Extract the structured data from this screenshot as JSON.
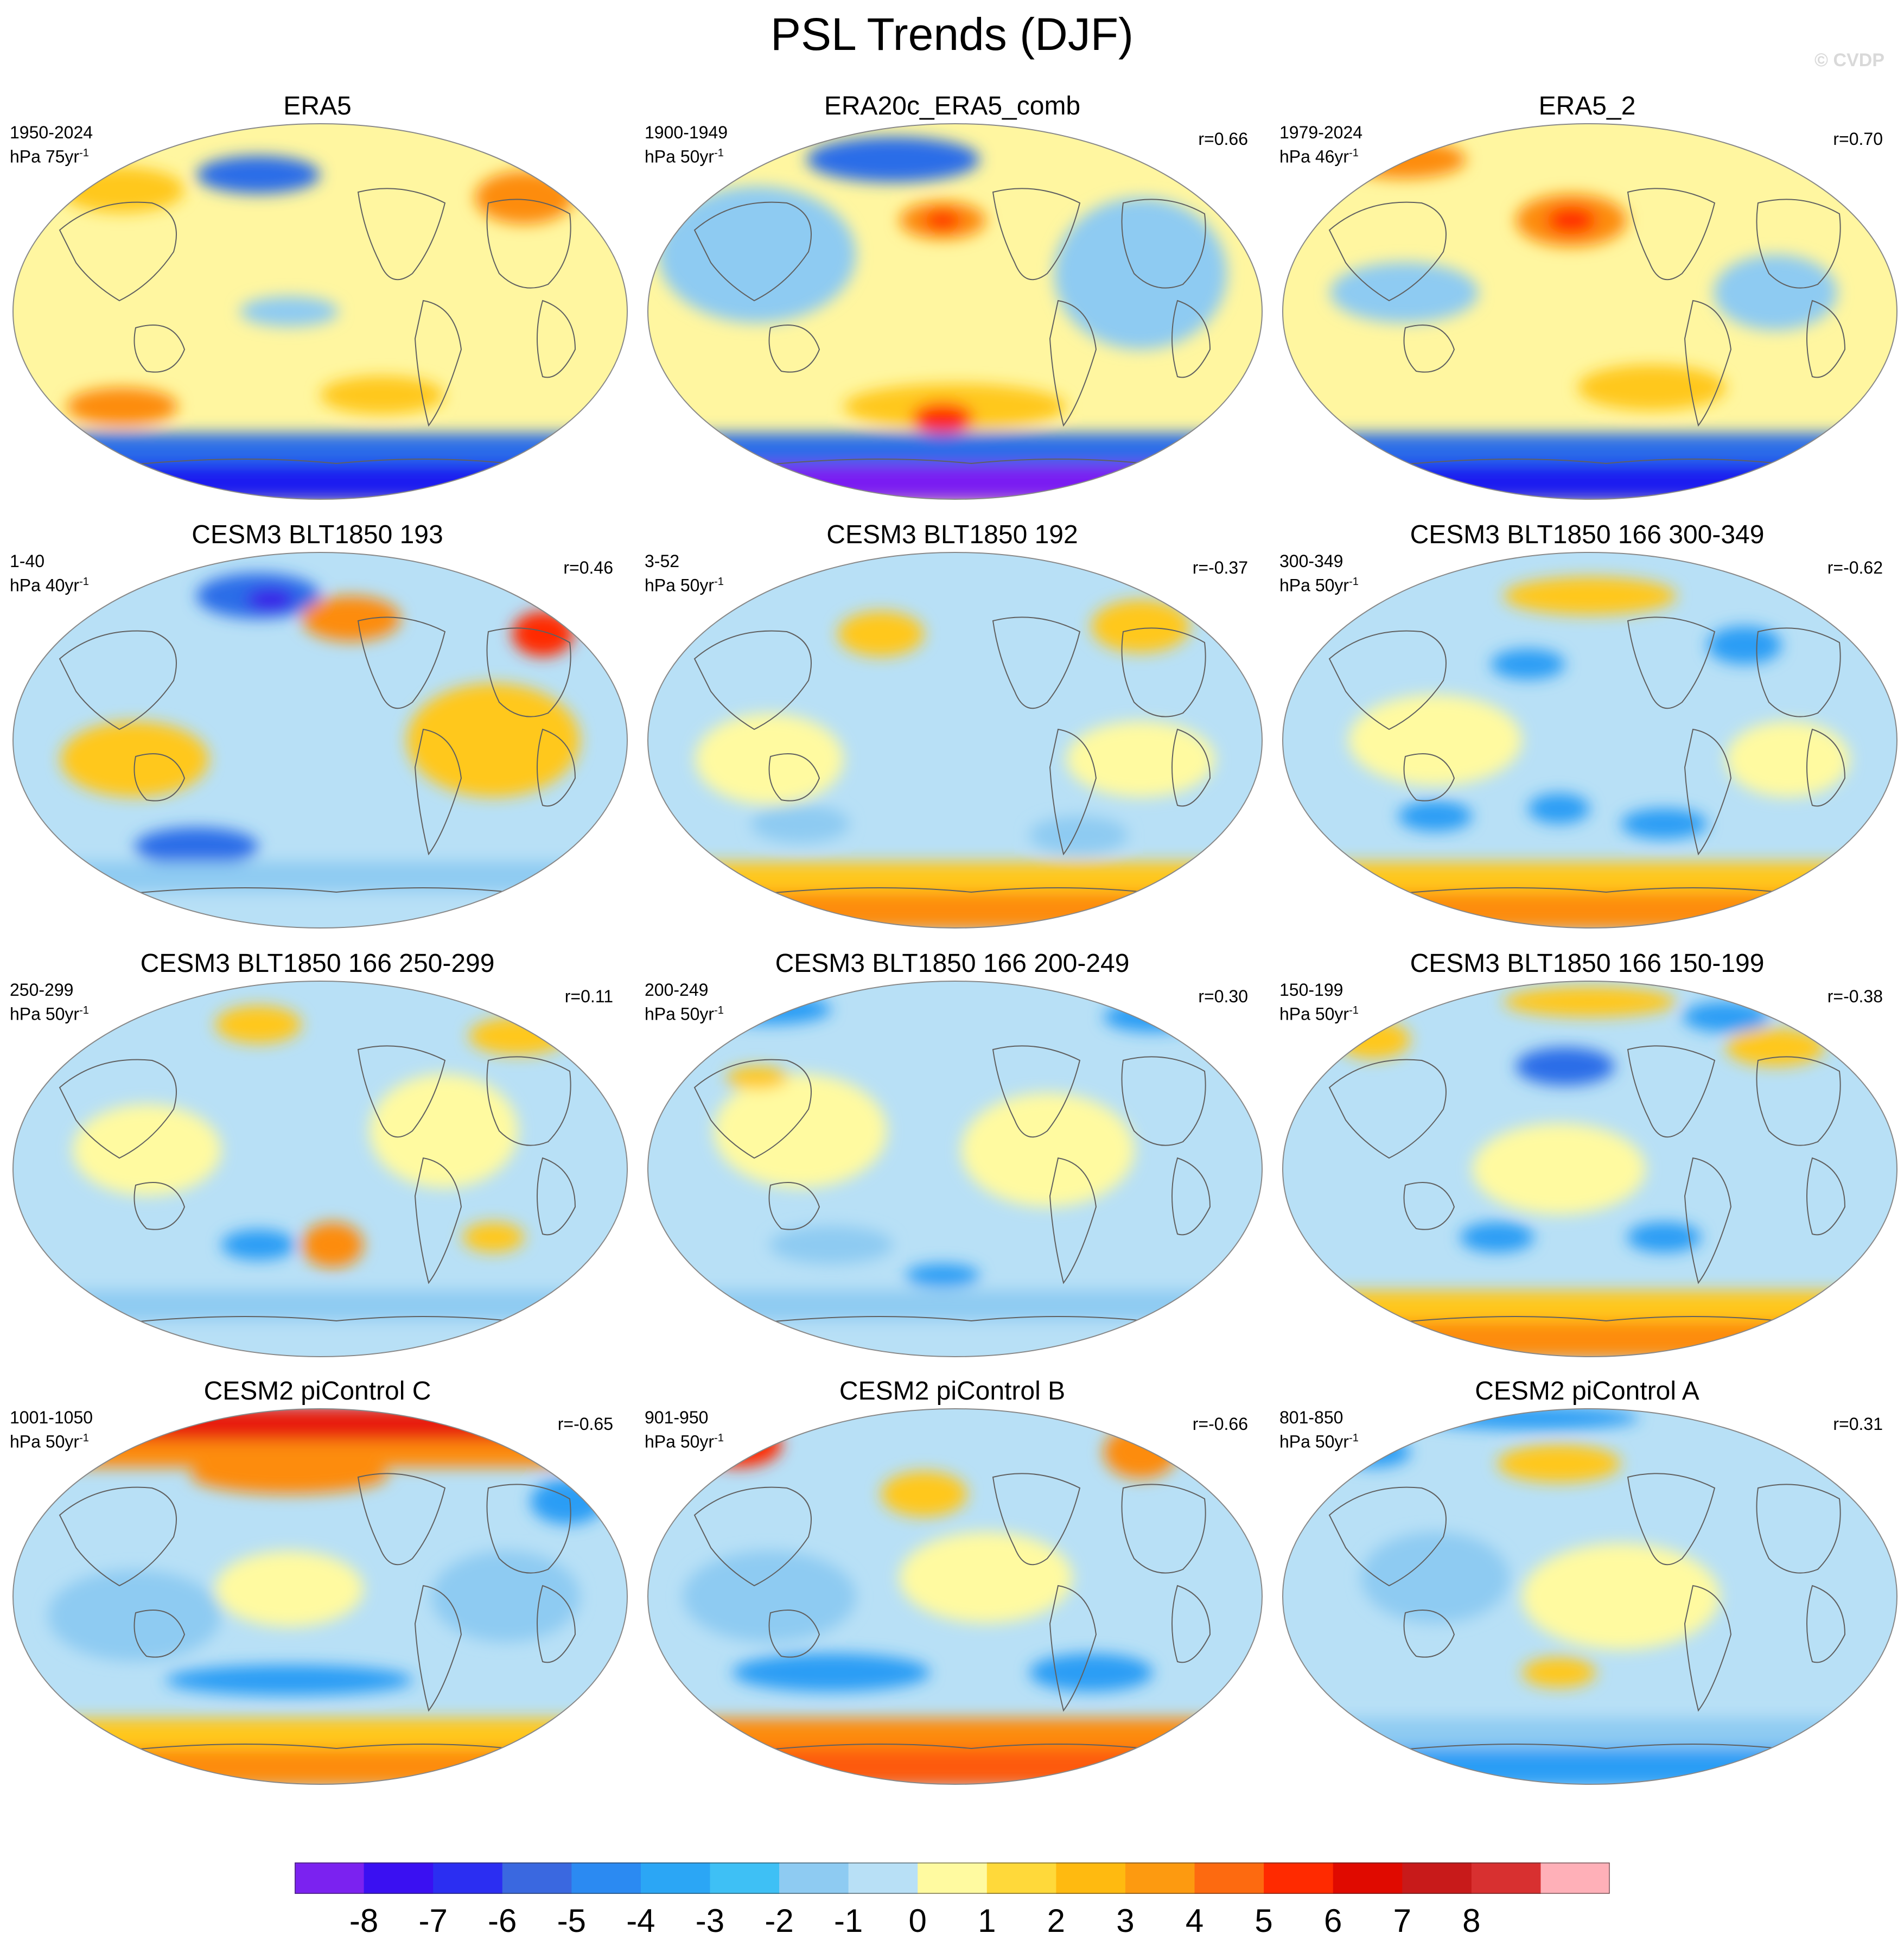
{
  "figure": {
    "title": "PSL Trends (DJF)",
    "credit": "© CVDP"
  },
  "panels": [
    {
      "title": "ERA5",
      "period": "1950-2024",
      "units": "hPa 75yr",
      "exp": "-1",
      "r": "",
      "blobs": [
        [
          "#2b6de8",
          0.4,
          0.14,
          0.1,
          0.05
        ],
        [
          "#fd8c10",
          0.83,
          0.2,
          0.08,
          0.07
        ],
        [
          "#ffc81e",
          0.18,
          0.18,
          0.1,
          0.06
        ],
        [
          "#fd8c10",
          0.18,
          0.75,
          0.09,
          0.05
        ],
        [
          "#ffc81e",
          0.6,
          0.72,
          0.1,
          0.05
        ],
        [
          "#8ecbf2",
          0.45,
          0.5,
          0.08,
          0.04
        ]
      ],
      "south": [
        "#2b6de8",
        "#1a1ff0"
      ]
    },
    {
      "title": "ERA20c_ERA5_comb",
      "period": "1900-1949",
      "units": "hPa 50yr",
      "exp": "-1",
      "r": "r=0.66",
      "blobs": [
        [
          "#8ecbf2",
          0.18,
          0.35,
          0.16,
          0.18
        ],
        [
          "#8ecbf2",
          0.8,
          0.4,
          0.14,
          0.2
        ],
        [
          "#2b6de8",
          0.4,
          0.1,
          0.14,
          0.06
        ],
        [
          "#fd8c10",
          0.48,
          0.26,
          0.07,
          0.05
        ],
        [
          "#ff2a00",
          0.48,
          0.26,
          0.03,
          0.025
        ],
        [
          "#ffc81e",
          0.5,
          0.75,
          0.18,
          0.06
        ],
        [
          "#ff2a00",
          0.48,
          0.78,
          0.05,
          0.04
        ]
      ],
      "south": [
        "#2b6de8",
        "#7a1bf2"
      ]
    },
    {
      "title": "ERA5_2",
      "period": "1979-2024",
      "units": "hPa 46yr",
      "exp": "-1",
      "r": "r=0.70",
      "blobs": [
        [
          "#fd8c10",
          0.47,
          0.26,
          0.09,
          0.07
        ],
        [
          "#ff2a00",
          0.47,
          0.26,
          0.04,
          0.035
        ],
        [
          "#fd8c10",
          0.2,
          0.1,
          0.1,
          0.05
        ],
        [
          "#8ecbf2",
          0.2,
          0.45,
          0.12,
          0.08
        ],
        [
          "#8ecbf2",
          0.8,
          0.45,
          0.1,
          0.1
        ],
        [
          "#ffc81e",
          0.6,
          0.7,
          0.12,
          0.06
        ]
      ],
      "south": [
        "#2b6de8",
        "#1a1ff0"
      ]
    },
    {
      "title": "CESM3 BLT1850 193",
      "period": "1-40",
      "units": "hPa 40yr",
      "exp": "-1",
      "r": "r=0.46",
      "blobs": [
        [
          "#2b6de8",
          0.4,
          0.12,
          0.1,
          0.06
        ],
        [
          "#3a1be8",
          0.42,
          0.13,
          0.04,
          0.03
        ],
        [
          "#fd8c10",
          0.55,
          0.18,
          0.08,
          0.06
        ],
        [
          "#ff2a00",
          0.86,
          0.22,
          0.05,
          0.06
        ],
        [
          "#ffc81e",
          0.2,
          0.55,
          0.12,
          0.1
        ],
        [
          "#ffc81e",
          0.78,
          0.5,
          0.14,
          0.15
        ],
        [
          "#2b6de8",
          0.3,
          0.78,
          0.1,
          0.05
        ]
      ],
      "south": [
        "#8ecbf2",
        "#b8e0f6"
      ]
    },
    {
      "title": "CESM3 BLT1850 192",
      "period": "3-52",
      "units": "hPa 50yr",
      "exp": "-1",
      "r": "r=-0.37",
      "blobs": [
        [
          "#ffc81e",
          0.38,
          0.22,
          0.07,
          0.06
        ],
        [
          "#ffc81e",
          0.8,
          0.2,
          0.08,
          0.07
        ],
        [
          "#fffaa0",
          0.2,
          0.55,
          0.12,
          0.12
        ],
        [
          "#fffaa0",
          0.8,
          0.55,
          0.12,
          0.1
        ],
        [
          "#8ecbf2",
          0.25,
          0.72,
          0.08,
          0.05
        ],
        [
          "#8ecbf2",
          0.7,
          0.75,
          0.08,
          0.05
        ]
      ],
      "south": [
        "#ffc81e",
        "#fd8c10"
      ]
    },
    {
      "title": "CESM3 BLT1850 166 300-349",
      "period": "300-349",
      "units": "hPa 50yr",
      "exp": "-1",
      "r": "r=-0.62",
      "blobs": [
        [
          "#ffc81e",
          0.5,
          0.12,
          0.14,
          0.05
        ],
        [
          "#2b9df5",
          0.4,
          0.3,
          0.06,
          0.04
        ],
        [
          "#2b9df5",
          0.75,
          0.25,
          0.06,
          0.05
        ],
        [
          "#fffaa0",
          0.25,
          0.5,
          0.14,
          0.12
        ],
        [
          "#fffaa0",
          0.82,
          0.55,
          0.1,
          0.1
        ],
        [
          "#2b9df5",
          0.25,
          0.7,
          0.06,
          0.04
        ],
        [
          "#2b9df5",
          0.45,
          0.68,
          0.05,
          0.04
        ],
        [
          "#2b9df5",
          0.62,
          0.72,
          0.07,
          0.04
        ]
      ],
      "south": [
        "#ffc81e",
        "#fd8c10"
      ]
    },
    {
      "title": "CESM3 BLT1850 166 250-299",
      "period": "250-299",
      "units": "hPa 50yr",
      "exp": "-1",
      "r": "r=0.11",
      "blobs": [
        [
          "#ffc81e",
          0.4,
          0.12,
          0.07,
          0.05
        ],
        [
          "#ffc81e",
          0.82,
          0.15,
          0.08,
          0.05
        ],
        [
          "#fffaa0",
          0.22,
          0.45,
          0.12,
          0.12
        ],
        [
          "#fffaa0",
          0.7,
          0.4,
          0.12,
          0.15
        ],
        [
          "#fd8c10",
          0.52,
          0.7,
          0.05,
          0.06
        ],
        [
          "#2b9df5",
          0.4,
          0.7,
          0.06,
          0.04
        ],
        [
          "#ffc81e",
          0.78,
          0.68,
          0.05,
          0.04
        ]
      ],
      "south": [
        "#8ecbf2",
        "#b8e0f6"
      ]
    },
    {
      "title": "CESM3 BLT1850 166 200-249",
      "period": "200-249",
      "units": "hPa 50yr",
      "exp": "-1",
      "r": "r=0.30",
      "blobs": [
        [
          "#2b9df5",
          0.2,
          0.08,
          0.1,
          0.04
        ],
        [
          "#2b9df5",
          0.82,
          0.1,
          0.08,
          0.04
        ],
        [
          "#fffaa0",
          0.25,
          0.4,
          0.14,
          0.15
        ],
        [
          "#fffaa0",
          0.65,
          0.45,
          0.14,
          0.15
        ],
        [
          "#ffc81e",
          0.18,
          0.26,
          0.05,
          0.03
        ],
        [
          "#8ecbf2",
          0.3,
          0.7,
          0.1,
          0.05
        ],
        [
          "#2b9df5",
          0.48,
          0.78,
          0.06,
          0.03
        ]
      ],
      "south": [
        "#8ecbf2",
        "#b8e0f6"
      ]
    },
    {
      "title": "CESM3 BLT1850 166 150-199",
      "period": "150-199",
      "units": "hPa 50yr",
      "exp": "-1",
      "r": "r=-0.38",
      "blobs": [
        [
          "#ffc81e",
          0.5,
          0.06,
          0.14,
          0.04
        ],
        [
          "#2b6de8",
          0.46,
          0.23,
          0.08,
          0.05
        ],
        [
          "#ffc81e",
          0.15,
          0.16,
          0.06,
          0.05
        ],
        [
          "#ffc81e",
          0.8,
          0.18,
          0.08,
          0.05
        ],
        [
          "#2b9df5",
          0.72,
          0.1,
          0.07,
          0.04
        ],
        [
          "#fffaa0",
          0.45,
          0.5,
          0.14,
          0.12
        ],
        [
          "#2b9df5",
          0.35,
          0.68,
          0.06,
          0.04
        ],
        [
          "#2b9df5",
          0.62,
          0.68,
          0.06,
          0.04
        ]
      ],
      "south": [
        "#ffc81e",
        "#fd8c10"
      ]
    },
    {
      "title": "CESM2 piControl C",
      "period": "1001-1050",
      "units": "hPa 50yr",
      "exp": "-1",
      "r": "r=-0.65",
      "blobs": [
        [
          "#fd8c10",
          0.45,
          0.18,
          0.16,
          0.05
        ],
        [
          "#2b9df5",
          0.9,
          0.25,
          0.06,
          0.06
        ],
        [
          "#fffaa0",
          0.45,
          0.48,
          0.12,
          0.1
        ],
        [
          "#8ecbf2",
          0.2,
          0.55,
          0.14,
          0.12
        ],
        [
          "#8ecbf2",
          0.8,
          0.5,
          0.12,
          0.12
        ],
        [
          "#2b9df5",
          0.45,
          0.72,
          0.2,
          0.04
        ]
      ],
      "south": [
        "#ffc81e",
        "#fd8c10"
      ],
      "north": [
        "#fd8c10",
        "#e81a0a"
      ]
    },
    {
      "title": "CESM2 piControl B",
      "period": "901-950",
      "units": "hPa 50yr",
      "exp": "-1",
      "r": "r=-0.66",
      "blobs": [
        [
          "#ff2a00",
          0.15,
          0.1,
          0.07,
          0.06
        ],
        [
          "#fd8c10",
          0.8,
          0.12,
          0.06,
          0.07
        ],
        [
          "#ffc81e",
          0.45,
          0.23,
          0.07,
          0.06
        ],
        [
          "#fffaa0",
          0.55,
          0.45,
          0.14,
          0.12
        ],
        [
          "#8ecbf2",
          0.2,
          0.5,
          0.14,
          0.12
        ],
        [
          "#2b9df5",
          0.3,
          0.7,
          0.16,
          0.05
        ],
        [
          "#2b9df5",
          0.72,
          0.7,
          0.1,
          0.05
        ]
      ],
      "south": [
        "#fd8c10",
        "#fd5a10"
      ]
    },
    {
      "title": "CESM2 piControl A",
      "period": "801-850",
      "units": "hPa 50yr",
      "exp": "-1",
      "r": "r=0.31",
      "blobs": [
        [
          "#2b9df5",
          0.4,
          0.03,
          0.18,
          0.03
        ],
        [
          "#2b9df5",
          0.15,
          0.12,
          0.06,
          0.04
        ],
        [
          "#ffc81e",
          0.45,
          0.15,
          0.1,
          0.05
        ],
        [
          "#fffaa0",
          0.55,
          0.5,
          0.16,
          0.14
        ],
        [
          "#8ecbf2",
          0.25,
          0.45,
          0.12,
          0.12
        ],
        [
          "#ffc81e",
          0.45,
          0.7,
          0.06,
          0.04
        ]
      ],
      "south": [
        "#8ecbf2",
        "#2b9df5"
      ]
    }
  ],
  "colorbar": {
    "colors": [
      "#7b22f0",
      "#3a10f2",
      "#2b2ef2",
      "#3a68e0",
      "#2b8af2",
      "#2ba6f5",
      "#3ec0f5",
      "#8ecbf2",
      "#b8e0f6",
      "#fffaa0",
      "#ffd93a",
      "#ffba10",
      "#fd9a10",
      "#fd6a10",
      "#ff2a00",
      "#e00a00",
      "#c81a1a",
      "#d83030",
      "#ffb0b8"
    ],
    "labels": [
      "-8",
      "-7",
      "-6",
      "-5",
      "-4",
      "-3",
      "-2",
      "-1",
      "0",
      "1",
      "2",
      "3",
      "4",
      "5",
      "6",
      "7",
      "8"
    ]
  }
}
